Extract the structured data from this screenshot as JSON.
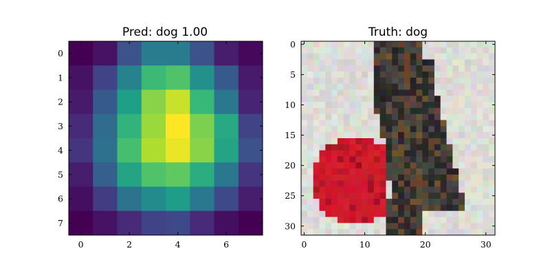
{
  "figure": {
    "background": "#ffffff"
  },
  "chart_data": [
    {
      "type": "heatmap",
      "title": "Pred: dog 1.00",
      "colormap": "viridis",
      "xticks": [
        0,
        2,
        4,
        6
      ],
      "yticks": [
        0,
        1,
        2,
        3,
        4,
        5,
        6,
        7
      ],
      "xlim": [
        -0.5,
        7.5
      ],
      "ylim": [
        7.5,
        -0.5
      ],
      "values": [
        [
          0.0,
          0.05,
          0.25,
          0.42,
          0.42,
          0.25,
          0.08,
          0.02
        ],
        [
          0.05,
          0.2,
          0.45,
          0.68,
          0.72,
          0.5,
          0.28,
          0.07
        ],
        [
          0.07,
          0.28,
          0.56,
          0.82,
          0.92,
          0.67,
          0.4,
          0.1
        ],
        [
          0.12,
          0.35,
          0.65,
          0.85,
          1.0,
          0.8,
          0.6,
          0.2
        ],
        [
          0.15,
          0.37,
          0.7,
          0.88,
          0.97,
          0.82,
          0.58,
          0.25
        ],
        [
          0.08,
          0.3,
          0.58,
          0.72,
          0.75,
          0.62,
          0.4,
          0.15
        ],
        [
          0.04,
          0.18,
          0.38,
          0.48,
          0.55,
          0.4,
          0.22,
          0.08
        ],
        [
          0.0,
          0.05,
          0.12,
          0.2,
          0.22,
          0.12,
          0.04,
          0.0
        ]
      ]
    },
    {
      "type": "image",
      "title": "Truth: dog",
      "xticks": [
        0,
        10,
        20,
        30
      ],
      "yticks": [
        0,
        5,
        10,
        15,
        20,
        25,
        30
      ],
      "xlim": [
        -0.5,
        31.5
      ],
      "ylim": [
        31.5,
        -0.5
      ],
      "pixel_grid": 32,
      "colors": {
        "background": "#dcdcd6",
        "dog_dark": "#2a2828",
        "dog_mid": "#4a4540",
        "dog_brown": "#6b4a30",
        "ball_red": "#d01a2c",
        "ball_dark": "#a81424"
      }
    }
  ]
}
